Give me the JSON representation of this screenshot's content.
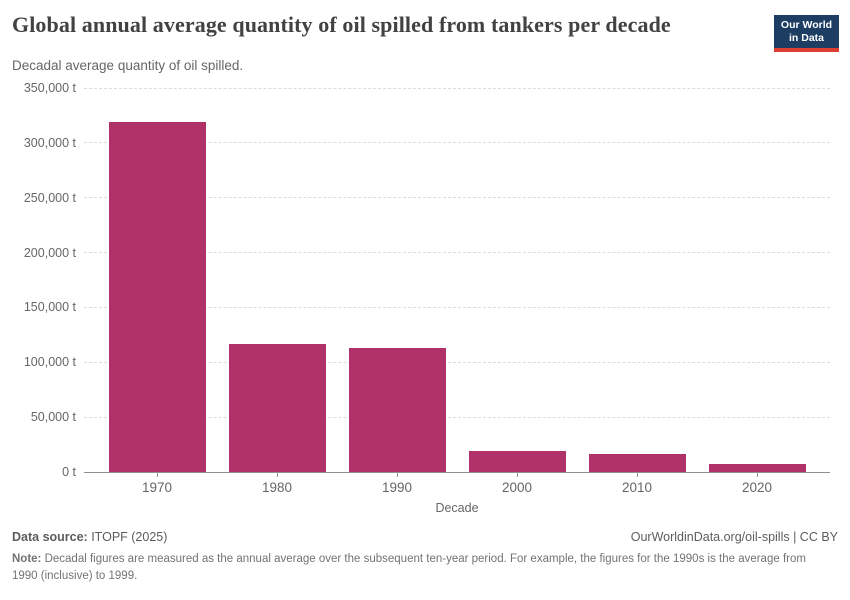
{
  "header": {
    "title": "Global annual average quantity of oil spilled from tankers per decade",
    "subtitle": "Decadal average quantity of oil spilled.",
    "logo": {
      "line1": "Our World",
      "line2": "in Data",
      "bg_color": "#1d3d63",
      "accent_color": "#dc3e32"
    }
  },
  "chart_data": {
    "type": "bar",
    "title": "Global annual average quantity of oil spilled from tankers per decade",
    "subtitle": "Decadal average quantity of oil spilled.",
    "categories": [
      "1970",
      "1980",
      "1990",
      "2000",
      "2010",
      "2020"
    ],
    "values": [
      319000,
      117000,
      113000,
      19500,
      16000,
      7500
    ],
    "xlabel": "Decade",
    "ylabel": "",
    "ylim": [
      0,
      350000
    ],
    "ytick_step": 50000,
    "unit_suffix": " t",
    "grid": "horizontal-dashed",
    "legend": "none",
    "bar_color": "#b03269",
    "gridline_color": "#dcdcdc",
    "axis_color": "#8f8f8f",
    "tick_label_color": "#666666"
  },
  "footer": {
    "source_label": "Data source:",
    "source_value": " ITOPF (2025)",
    "link": "OurWorldinData.org/oil-spills | CC BY",
    "note_label": "Note:",
    "note_text": " Decadal figures are measured as the annual average over the subsequent ten-year period. For example, the figures for the 1990s is the average from 1990 (inclusive) to 1999."
  }
}
